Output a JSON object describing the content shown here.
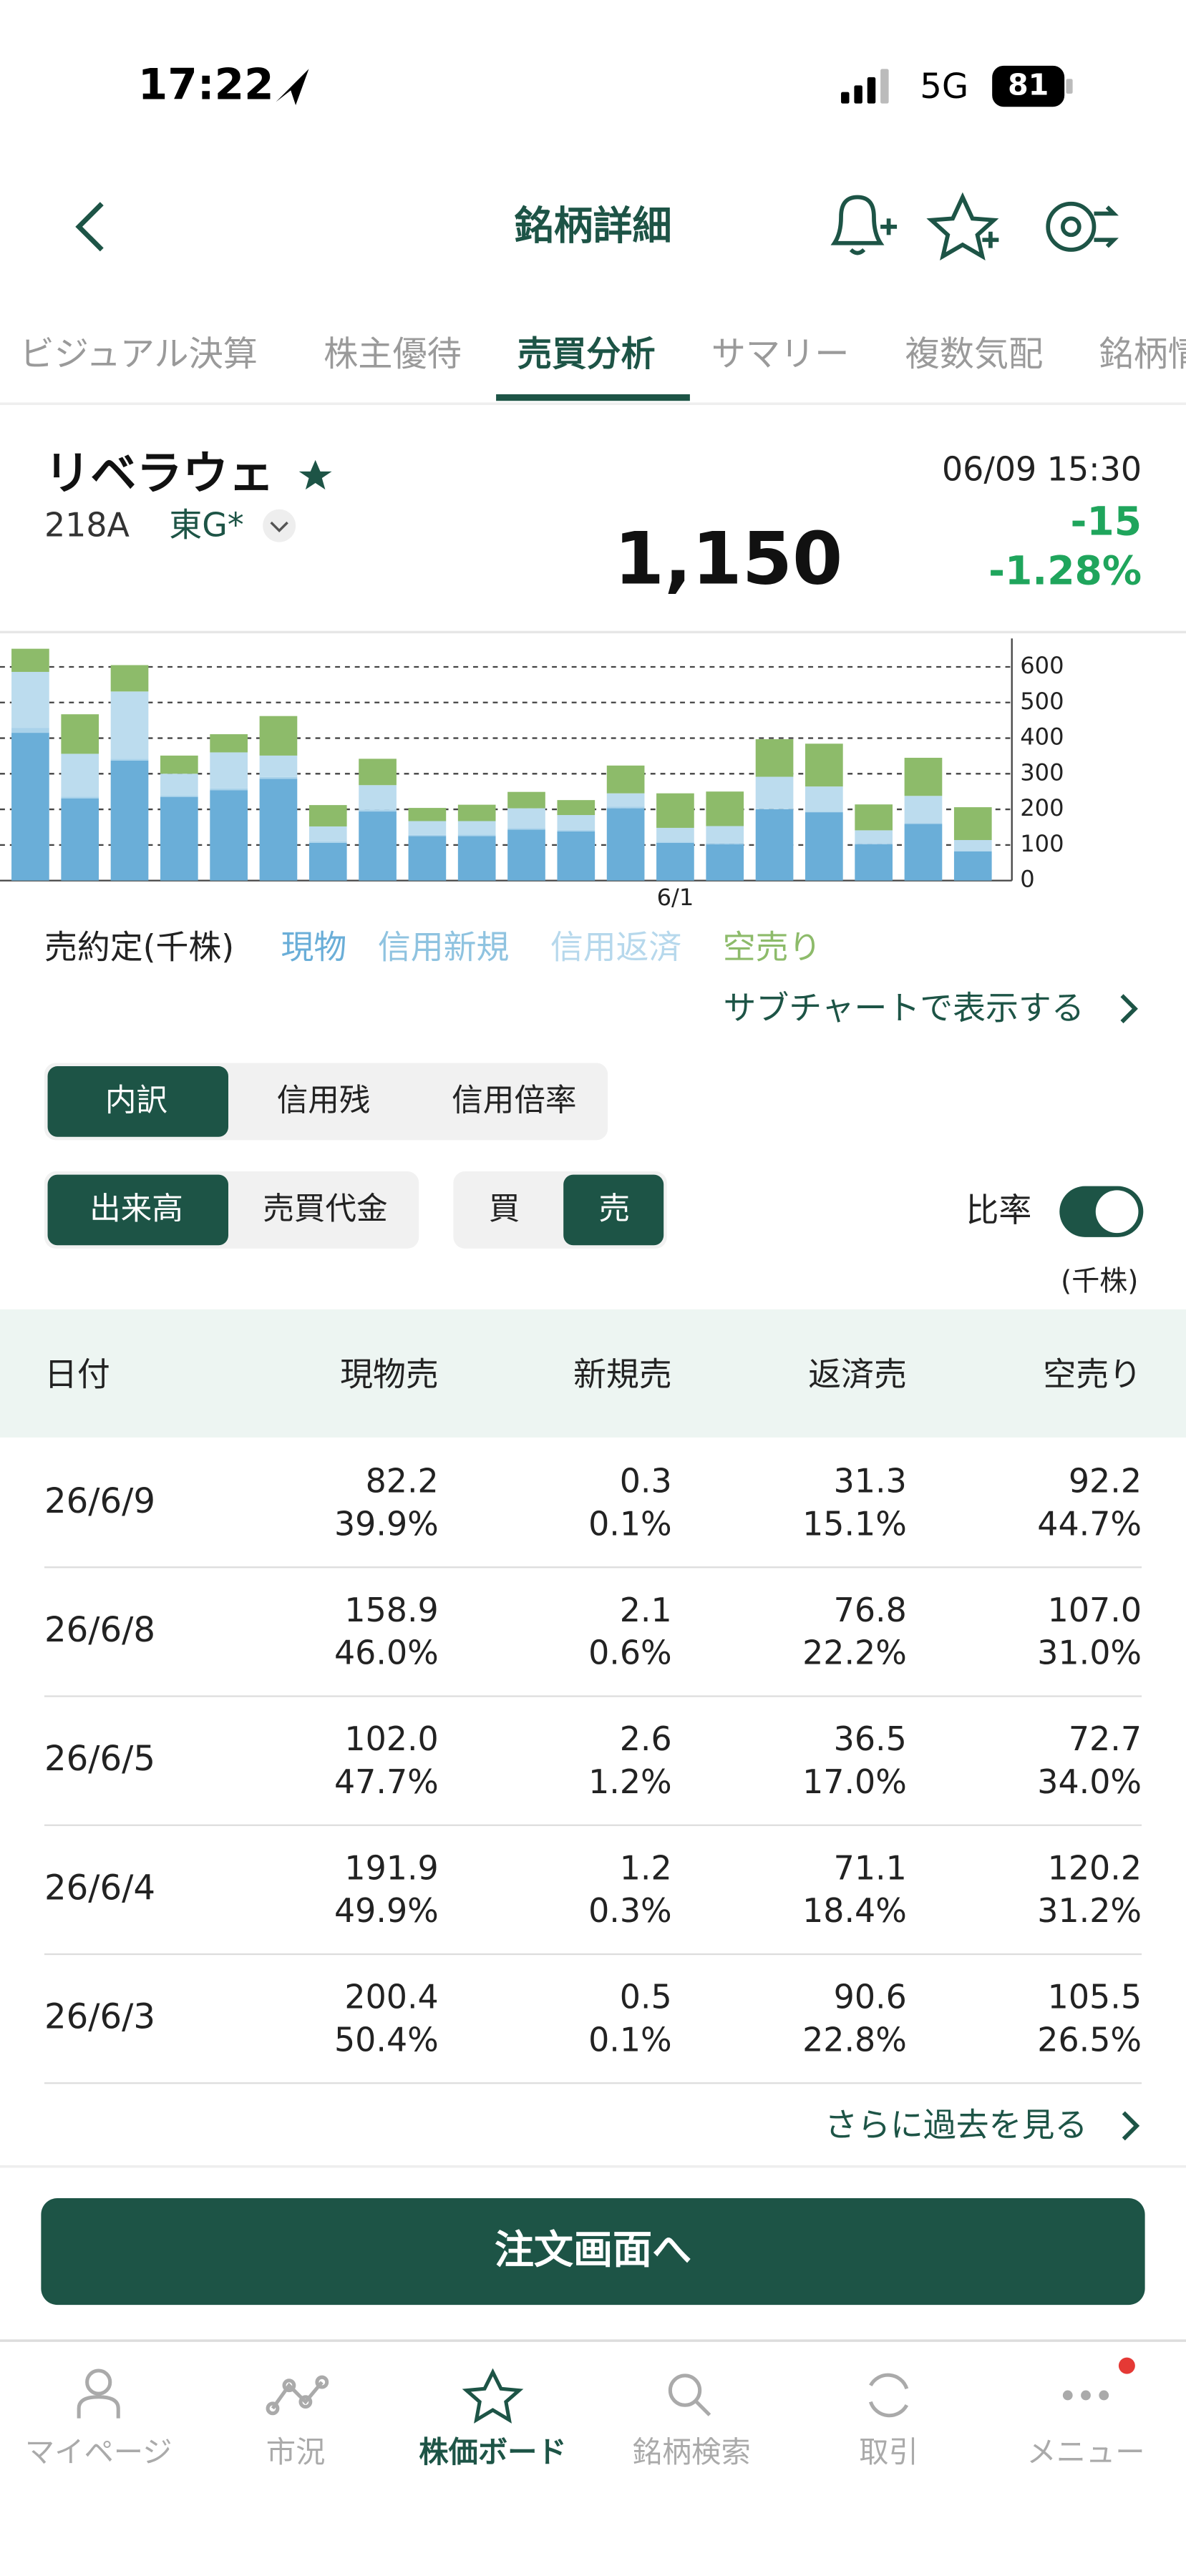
{
  "status_bar": {
    "time": "17:22",
    "network": "5G",
    "battery": "81"
  },
  "header": {
    "title": "銘柄詳細"
  },
  "tabs": {
    "items": [
      "ビジュアル決算",
      "株主優待",
      "売買分析",
      "サマリー",
      "複数気配",
      "銘柄情"
    ],
    "selected": 2
  },
  "stock": {
    "name": "リベラウェ",
    "code": "218A",
    "market": "東G*",
    "datetime": "06/09 15:30",
    "price": "1,150",
    "change": "-15",
    "change_pct": "-1.28%"
  },
  "chart_data": {
    "type": "bar",
    "stacked": true,
    "y_label": "売約定(千株)",
    "categories": [
      null,
      null,
      null,
      null,
      null,
      null,
      null,
      null,
      null,
      null,
      null,
      null,
      null,
      "6/1",
      null,
      null,
      null,
      null,
      null,
      null
    ],
    "series": [
      {
        "name": "現物",
        "color": "#6aaed8",
        "legend_color": "#6aaed8",
        "values": [
          415,
          231,
          337,
          235,
          254,
          286,
          106,
          194,
          125,
          125,
          143,
          138,
          203,
          106,
          102,
          200.4,
          191.9,
          102.0,
          158.9,
          82.2
        ]
      },
      {
        "name": "信用新規",
        "color": "#a9d2ea",
        "legend_color": "#8fc3e0",
        "values": [
          14,
          5,
          5,
          4,
          5,
          5,
          4,
          5,
          3,
          4,
          4,
          4,
          5,
          3,
          4,
          0.5,
          1.2,
          2.6,
          2.1,
          0.3
        ]
      },
      {
        "name": "信用返済",
        "color": "#bcdcee",
        "legend_color": "#b6d8ec",
        "values": [
          157,
          120,
          189,
          61,
          101,
          60,
          42,
          69,
          39,
          38,
          56,
          42,
          37,
          39,
          47,
          90.6,
          71.1,
          36.5,
          76.8,
          31.3
        ]
      },
      {
        "name": "空売り",
        "color": "#8dbb6a",
        "legend_color": "#8dbb6a",
        "values": [
          65,
          111,
          74,
          51,
          51,
          111,
          60,
          74,
          37,
          46,
          46,
          42,
          78,
          97,
          97,
          105.5,
          120.2,
          72.7,
          107.0,
          92.2
        ]
      }
    ],
    "ylim": [
      0,
      680
    ],
    "yticks": [
      0,
      100,
      200,
      300,
      400,
      500,
      600
    ],
    "grid": true
  },
  "sub_chart_link": "サブチャートで表示する",
  "segment_breakdown": {
    "items": [
      "内訳",
      "信用残",
      "信用倍率"
    ],
    "selected": 0
  },
  "segment_measure": {
    "items": [
      "出来高",
      "売買代金"
    ],
    "selected": 0
  },
  "segment_side": {
    "items": [
      "買",
      "売"
    ],
    "selected": 1
  },
  "ratio_toggle": {
    "label": "比率",
    "on": true
  },
  "table": {
    "unit": "(千株)",
    "columns": [
      "日付",
      "現物売",
      "新規売",
      "返済売",
      "空売り"
    ],
    "rows": [
      {
        "date": "26/6/9",
        "cells": [
          [
            "82.2",
            "39.9%"
          ],
          [
            "0.3",
            "0.1%"
          ],
          [
            "31.3",
            "15.1%"
          ],
          [
            "92.2",
            "44.7%"
          ]
        ]
      },
      {
        "date": "26/6/8",
        "cells": [
          [
            "158.9",
            "46.0%"
          ],
          [
            "2.1",
            "0.6%"
          ],
          [
            "76.8",
            "22.2%"
          ],
          [
            "107.0",
            "31.0%"
          ]
        ]
      },
      {
        "date": "26/6/5",
        "cells": [
          [
            "102.0",
            "47.7%"
          ],
          [
            "2.6",
            "1.2%"
          ],
          [
            "36.5",
            "17.0%"
          ],
          [
            "72.7",
            "34.0%"
          ]
        ]
      },
      {
        "date": "26/6/4",
        "cells": [
          [
            "191.9",
            "49.9%"
          ],
          [
            "1.2",
            "0.3%"
          ],
          [
            "71.1",
            "18.4%"
          ],
          [
            "120.2",
            "31.2%"
          ]
        ]
      },
      {
        "date": "26/6/3",
        "cells": [
          [
            "200.4",
            "50.4%"
          ],
          [
            "0.5",
            "0.1%"
          ],
          [
            "90.6",
            "22.8%"
          ],
          [
            "105.5",
            "26.5%"
          ]
        ]
      }
    ]
  },
  "more_link": "さらに過去を見る",
  "order_button": "注文画面へ",
  "bottom_nav": {
    "items": [
      "マイページ",
      "市況",
      "株価ボード",
      "銘柄検索",
      "取引",
      "メニュー"
    ],
    "selected": 2
  }
}
